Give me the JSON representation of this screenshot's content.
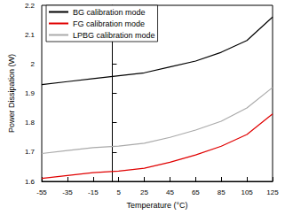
{
  "chart_data": {
    "type": "line",
    "xlabel": "Temperature (°C)",
    "ylabel": "Power Dissipation (W)",
    "x": [
      -55,
      -35,
      -15,
      5,
      25,
      45,
      65,
      85,
      105,
      125
    ],
    "series": [
      {
        "name": "BG calibration mode",
        "color": "#000000",
        "values": [
          1.93,
          1.94,
          1.95,
          1.96,
          1.97,
          1.99,
          2.01,
          2.04,
          2.08,
          2.16
        ]
      },
      {
        "name": "FG calibration mode",
        "color": "#e00000",
        "values": [
          1.61,
          1.62,
          1.63,
          1.635,
          1.645,
          1.665,
          1.69,
          1.72,
          1.76,
          1.83
        ]
      },
      {
        "name": "LPBG calibration mode",
        "color": "#aaaaaa",
        "values": [
          1.695,
          1.705,
          1.715,
          1.72,
          1.73,
          1.75,
          1.775,
          1.805,
          1.85,
          1.92
        ]
      }
    ],
    "xlim": [
      -55,
      125
    ],
    "xticks": [
      -55,
      -35,
      -15,
      5,
      25,
      45,
      65,
      85,
      105,
      125
    ],
    "ylim": [
      1.6,
      2.2
    ],
    "yticks": [
      1.6,
      1.7,
      1.8,
      1.9,
      2,
      2.1,
      2.2
    ],
    "grid": false,
    "legend": "upper left"
  }
}
